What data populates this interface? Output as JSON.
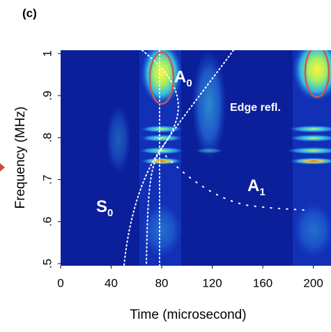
{
  "chart_data": {
    "type": "spectrogram",
    "panel_label": "(c)",
    "xlabel": "Time (microsecond)",
    "ylabel": "Frequency (MHz)",
    "xlim": [
      0,
      214
    ],
    "xticks": [
      0,
      40,
      80,
      120,
      160,
      200
    ],
    "ylim": [
      0.495,
      1.008
    ],
    "yticks": [
      {
        "value": 0.5,
        "label": ".5"
      },
      {
        "value": 0.6,
        "label": ".6"
      },
      {
        "value": 0.7,
        "label": ".7"
      },
      {
        "value": 0.8,
        "label": ".8"
      },
      {
        "value": 0.9,
        "label": ".9"
      },
      {
        "value": 1,
        "label": "1"
      }
    ],
    "annotations": [
      {
        "text": "A",
        "sub": "0"
      },
      {
        "text": "A",
        "sub": "1"
      },
      {
        "text": "S",
        "sub": "0"
      },
      {
        "text": "Edge refl."
      }
    ]
  }
}
